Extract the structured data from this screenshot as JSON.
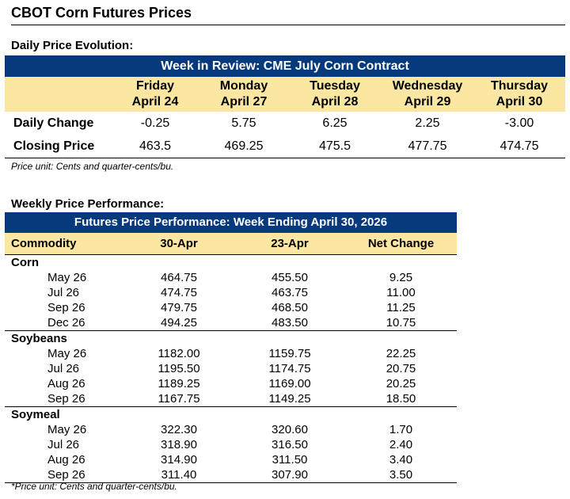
{
  "title": "CBOT Corn Futures Prices",
  "daily": {
    "section_title": "Daily Price Evolution:",
    "bar_title": "Week in Review: CME July Corn Contract",
    "days": [
      {
        "name": "Friday",
        "date": "April 24"
      },
      {
        "name": "Monday",
        "date": "April 27"
      },
      {
        "name": "Tuesday",
        "date": "April 28"
      },
      {
        "name": "Wednesday",
        "date": "April 29"
      },
      {
        "name": "Thursday",
        "date": "April 30"
      }
    ],
    "rows": [
      {
        "label": "Daily Change",
        "values": [
          "-0.25",
          "5.75",
          "6.25",
          "2.25",
          "-3.00"
        ]
      },
      {
        "label": "Closing Price",
        "values": [
          "463.5",
          "469.25",
          "475.5",
          "477.75",
          "474.75"
        ]
      }
    ],
    "note": "Price unit: Cents and quarter-cents/bu."
  },
  "weekly": {
    "section_title": "Weekly Price Performance:",
    "bar_title": "Futures Price Performance: Week Ending April 30, 2026",
    "headers": [
      "Commodity",
      "30-Apr",
      "23-Apr",
      "Net Change"
    ],
    "groups": [
      {
        "name": "Corn",
        "items": [
          [
            "May 26",
            "464.75",
            "455.50",
            "9.25"
          ],
          [
            "Jul 26",
            "474.75",
            "463.75",
            "11.00"
          ],
          [
            "Sep 26",
            "479.75",
            "468.50",
            "11.25"
          ],
          [
            "Dec 26",
            "494.25",
            "483.50",
            "10.75"
          ]
        ]
      },
      {
        "name": "Soybeans",
        "items": [
          [
            "May 26",
            "1182.00",
            "1159.75",
            "22.25"
          ],
          [
            "Jul 26",
            "1195.50",
            "1174.75",
            "20.75"
          ],
          [
            "Aug 26",
            "1189.25",
            "1169.00",
            "20.25"
          ],
          [
            "Sep 26",
            "1167.75",
            "1149.25",
            "18.50"
          ]
        ]
      },
      {
        "name": "Soymeal",
        "items": [
          [
            "May 26",
            "322.30",
            "320.60",
            "1.70"
          ],
          [
            "Jul 26",
            "318.90",
            "316.50",
            "2.40"
          ],
          [
            "Aug 26",
            "314.90",
            "311.50",
            "3.40"
          ],
          [
            "Sep 26",
            "311.40",
            "307.90",
            "3.50"
          ]
        ]
      }
    ],
    "note": "*Price unit: Cents and quarter-cents/bu."
  }
}
